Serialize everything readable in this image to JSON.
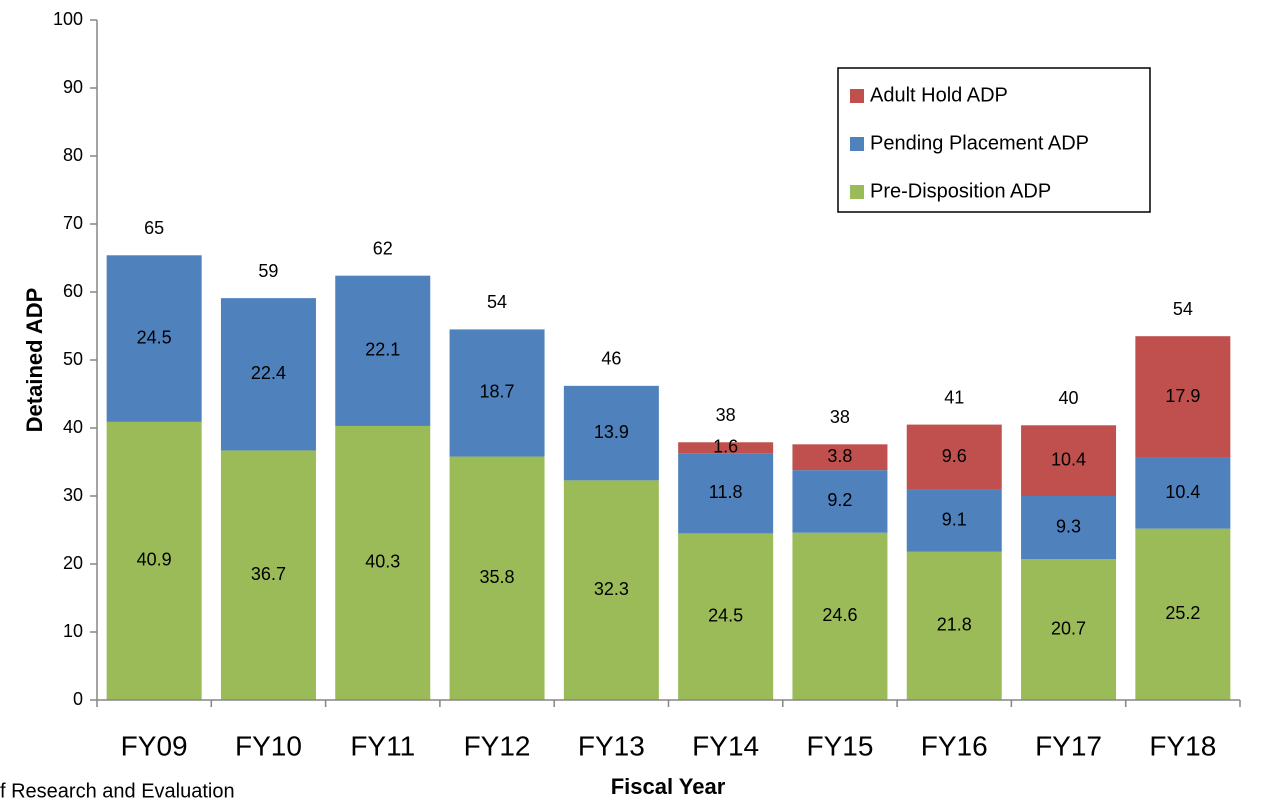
{
  "chart_data": {
    "type": "stacked_bar",
    "x_label": "Fiscal Year",
    "y_label": "Detained ADP",
    "source": "f Research and Evaluation",
    "categories": [
      "FY09",
      "FY10",
      "FY11",
      "FY12",
      "FY13",
      "FY14",
      "FY15",
      "FY16",
      "FY17",
      "FY18"
    ],
    "series": [
      {
        "name": "Pre-Disposition ADP",
        "color": "#9bbb59",
        "values": [
          40.9,
          36.7,
          40.3,
          35.8,
          32.3,
          24.5,
          24.6,
          21.8,
          20.7,
          25.2
        ]
      },
      {
        "name": "Pending Placement ADP",
        "color": "#4f81bd",
        "values": [
          24.5,
          22.4,
          22.1,
          18.7,
          13.9,
          11.8,
          9.2,
          9.1,
          9.3,
          10.4
        ]
      },
      {
        "name": "Adult Hold ADP",
        "color": "#c0504d",
        "values": [
          null,
          null,
          null,
          null,
          null,
          1.6,
          3.8,
          9.6,
          10.4,
          17.9
        ]
      }
    ],
    "totals": [
      65,
      59,
      62,
      54,
      46,
      38,
      38,
      41,
      40,
      54
    ],
    "ylim": [
      0,
      100
    ],
    "yticks": [
      0,
      10,
      20,
      30,
      40,
      50,
      60,
      70,
      80,
      90,
      100
    ],
    "legend": "upper right",
    "grid": false
  }
}
